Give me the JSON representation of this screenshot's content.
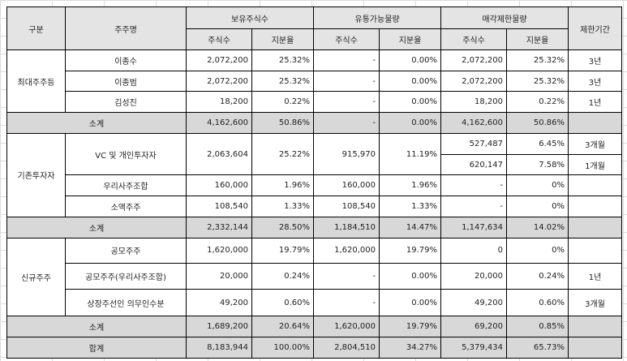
{
  "headers": {
    "category": "구분",
    "shareholder": "주주명",
    "holding": "보유주식수",
    "floating": "유통가능물량",
    "locked": "매각제한물량",
    "period": "제한기간",
    "shares": "주식수",
    "ratio": "지분율"
  },
  "rows": {
    "g1": "최대주주등",
    "r1": {
      "name": "이종수",
      "h_s": "2,072,200",
      "h_r": "25.32%",
      "f_s": "-",
      "f_r": "0.00%",
      "l_s": "2,072,200",
      "l_r": "25.32%",
      "p": "3년"
    },
    "r2": {
      "name": "이종범",
      "h_s": "2,072,200",
      "h_r": "25.32%",
      "f_s": "-",
      "f_r": "0.00%",
      "l_s": "2,072,200",
      "l_r": "25.32%",
      "p": "3년"
    },
    "r3": {
      "name": "김성진",
      "h_s": "18,200",
      "h_r": "0.22%",
      "f_s": "-",
      "f_r": "0.00%",
      "l_s": "18,200",
      "l_r": "0.22%",
      "p": "1년"
    },
    "s1": {
      "label": "소계",
      "h_s": "4,162,600",
      "h_r": "50.86%",
      "f_s": "-",
      "f_r": "0.00%",
      "l_s": "4,162,600",
      "l_r": "50.86%"
    },
    "g2": "기존투자자",
    "r4": {
      "name": "VC 및 개인투자자",
      "h_s": "2,063,604",
      "h_r": "25.22%",
      "f_s": "915,970",
      "f_r": "11.19%",
      "l_s": "527,487",
      "l_r": "6.45%",
      "p": "3개월",
      "l_s2": "620,147",
      "l_r2": "7.58%",
      "p2": "1개월"
    },
    "r5": {
      "name": "우리사주조합",
      "h_s": "160,000",
      "h_r": "1.96%",
      "f_s": "160,000",
      "f_r": "1.96%",
      "l_s": "-",
      "l_r": "0%"
    },
    "r6": {
      "name": "소액주주",
      "h_s": "108,540",
      "h_r": "1.33%",
      "f_s": "108,540",
      "f_r": "1.33%",
      "l_s": "-",
      "l_r": "0%"
    },
    "s2": {
      "label": "소계",
      "h_s": "2,332,144",
      "h_r": "28.50%",
      "f_s": "1,184,510",
      "f_r": "14.47%",
      "l_s": "1,147,634",
      "l_r": "14.02%"
    },
    "g3": "신규주주",
    "r7": {
      "name": "공모주주",
      "h_s": "1,620,000",
      "h_r": "19.79%",
      "f_s": "1,620,000",
      "f_r": "19.79%",
      "l_s": "0",
      "l_r": "0%"
    },
    "r8": {
      "name": "공모주주(우리사주조합)",
      "h_s": "20,000",
      "h_r": "0.24%",
      "f_s": "-",
      "f_r": "0.00%",
      "l_s": "20,000",
      "l_r": "0.24%",
      "p": "1년"
    },
    "r9": {
      "name": "상장주선인 의무인수분",
      "h_s": "49,200",
      "h_r": "0.60%",
      "f_s": "-",
      "f_r": "0.00%",
      "l_s": "49,200",
      "l_r": "0.60%",
      "p": "3개월"
    },
    "s3": {
      "label": "소계",
      "h_s": "1,689,200",
      "h_r": "20.64%",
      "f_s": "1,620,000",
      "f_r": "19.79%",
      "l_s": "69,200",
      "l_r": "0.85%"
    },
    "total": {
      "label": "합계",
      "h_s": "8,183,944",
      "h_r": "100.00%",
      "f_s": "2,804,510",
      "f_r": "34.27%",
      "l_s": "5,379,434",
      "l_r": "65.73%"
    }
  }
}
